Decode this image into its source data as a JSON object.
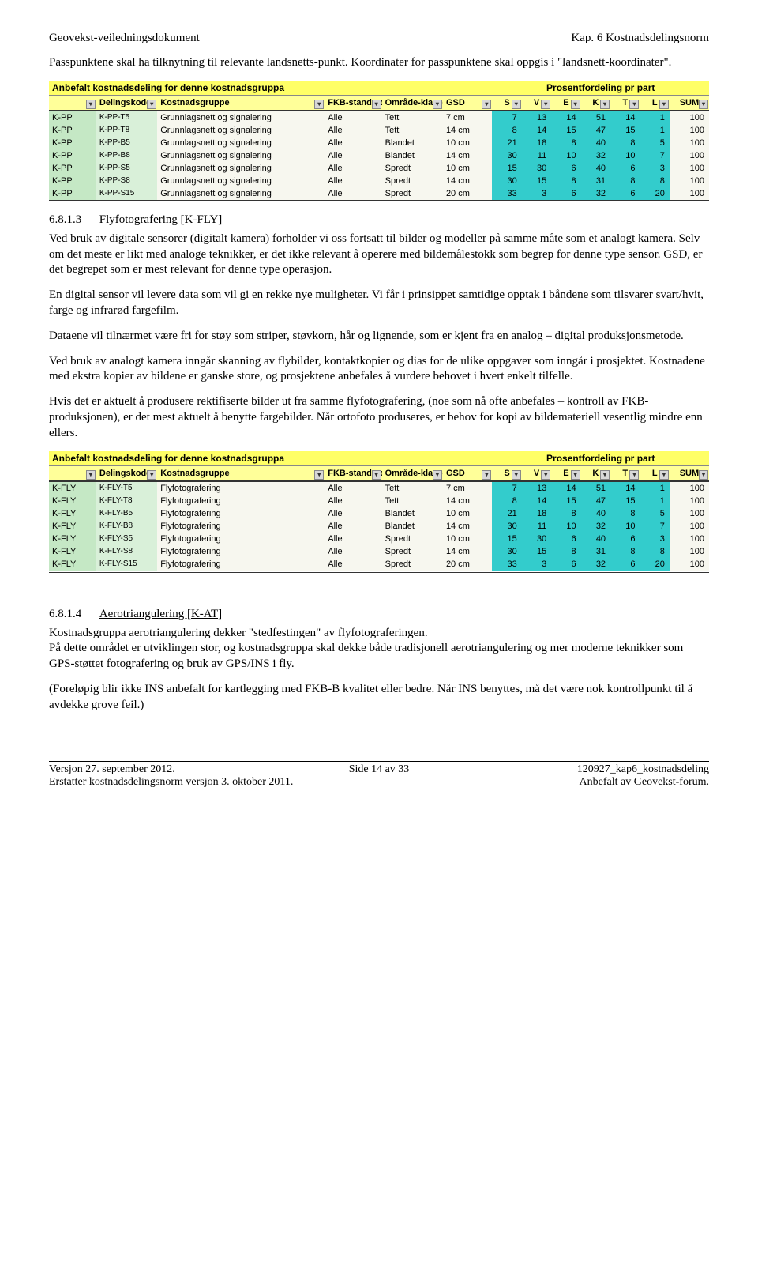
{
  "header": {
    "left": "Geovekst-veiledningsdokument",
    "right": "Kap. 6 Kostnadsdelingsnorm"
  },
  "intro": "Passpunktene skal ha tilknytning til relevante landsnetts-punkt. Koordinater for passpunktene skal oppgis i \"landsnett-koordinater\".",
  "table_head": {
    "left_title": "Anbefalt kostnadsdeling for denne kostnadsgruppa",
    "right_title": "Prosentfordeling pr part",
    "cols": [
      "",
      "Delingskode",
      "Kostnadsgruppe",
      "FKB-standard",
      "Område-klasse",
      "GSD",
      "S",
      "V",
      "E",
      "K",
      "T",
      "L",
      "SUM"
    ]
  },
  "table1": {
    "rows": [
      [
        "K-PP",
        "K-PP-T5",
        "Grunnlagsnett og signalering",
        "Alle",
        "Tett",
        "7 cm",
        "7",
        "13",
        "14",
        "51",
        "14",
        "1",
        "100"
      ],
      [
        "K-PP",
        "K-PP-T8",
        "Grunnlagsnett og signalering",
        "Alle",
        "Tett",
        "14 cm",
        "8",
        "14",
        "15",
        "47",
        "15",
        "1",
        "100"
      ],
      [
        "K-PP",
        "K-PP-B5",
        "Grunnlagsnett og signalering",
        "Alle",
        "Blandet",
        "10 cm",
        "21",
        "18",
        "8",
        "40",
        "8",
        "5",
        "100"
      ],
      [
        "K-PP",
        "K-PP-B8",
        "Grunnlagsnett og signalering",
        "Alle",
        "Blandet",
        "14 cm",
        "30",
        "11",
        "10",
        "32",
        "10",
        "7",
        "100"
      ],
      [
        "K-PP",
        "K-PP-S5",
        "Grunnlagsnett og signalering",
        "Alle",
        "Spredt",
        "10 cm",
        "15",
        "30",
        "6",
        "40",
        "6",
        "3",
        "100"
      ],
      [
        "K-PP",
        "K-PP-S8",
        "Grunnlagsnett og signalering",
        "Alle",
        "Spredt",
        "14 cm",
        "30",
        "15",
        "8",
        "31",
        "8",
        "8",
        "100"
      ],
      [
        "K-PP",
        "K-PP-S15",
        "Grunnlagsnett og signalering",
        "Alle",
        "Spredt",
        "20 cm",
        "33",
        "3",
        "6",
        "32",
        "6",
        "20",
        "100"
      ]
    ]
  },
  "sec1": {
    "num": "6.8.1.3",
    "title": "Flyfotografering [K-FLY]",
    "p1": "Ved bruk av digitale sensorer (digitalt kamera) forholder vi oss fortsatt til bilder og modeller på samme måte som et analogt kamera. Selv om det meste er likt med analoge teknikker, er det ikke relevant å operere med bildemålestokk som begrep for denne type sensor. GSD, er det begrepet som er mest relevant for denne type operasjon.",
    "p2": "En digital sensor vil levere data som vil gi en rekke nye muligheter. Vi får i prinsippet samtidige opptak i båndene som tilsvarer svart/hvit, farge og infrarød fargefilm.",
    "p3": "Dataene vil tilnærmet være fri for støy som striper, støvkorn, hår og lignende, som er kjent fra en analog – digital produksjonsmetode.",
    "p4": "Ved bruk av analogt kamera inngår skanning av flybilder, kontaktkopier og dias for de ulike oppgaver som inngår i prosjektet. Kostnadene med ekstra kopier av bildene er ganske store, og prosjektene anbefales å vurdere behovet i hvert enkelt tilfelle.",
    "p5": "Hvis det er aktuelt å produsere rektifiserte bilder ut fra samme flyfotografering, (noe som nå ofte anbefales – kontroll av FKB-produksjonen), er det mest aktuelt å benytte fargebilder. Når ortofoto produseres, er behov for kopi av bildemateriell vesentlig mindre enn ellers."
  },
  "table2": {
    "rows": [
      [
        "K-FLY",
        "K-FLY-T5",
        "Flyfotografering",
        "Alle",
        "Tett",
        "7 cm",
        "7",
        "13",
        "14",
        "51",
        "14",
        "1",
        "100"
      ],
      [
        "K-FLY",
        "K-FLY-T8",
        "Flyfotografering",
        "Alle",
        "Tett",
        "14 cm",
        "8",
        "14",
        "15",
        "47",
        "15",
        "1",
        "100"
      ],
      [
        "K-FLY",
        "K-FLY-B5",
        "Flyfotografering",
        "Alle",
        "Blandet",
        "10 cm",
        "21",
        "18",
        "8",
        "40",
        "8",
        "5",
        "100"
      ],
      [
        "K-FLY",
        "K-FLY-B8",
        "Flyfotografering",
        "Alle",
        "Blandet",
        "14 cm",
        "30",
        "11",
        "10",
        "32",
        "10",
        "7",
        "100"
      ],
      [
        "K-FLY",
        "K-FLY-S5",
        "Flyfotografering",
        "Alle",
        "Spredt",
        "10 cm",
        "15",
        "30",
        "6",
        "40",
        "6",
        "3",
        "100"
      ],
      [
        "K-FLY",
        "K-FLY-S8",
        "Flyfotografering",
        "Alle",
        "Spredt",
        "14 cm",
        "30",
        "15",
        "8",
        "31",
        "8",
        "8",
        "100"
      ],
      [
        "K-FLY",
        "K-FLY-S15",
        "Flyfotografering",
        "Alle",
        "Spredt",
        "20 cm",
        "33",
        "3",
        "6",
        "32",
        "6",
        "20",
        "100"
      ]
    ]
  },
  "sec2": {
    "num": "6.8.1.4",
    "title": "Aerotriangulering [K-AT]",
    "p1": "Kostnadsgruppa aerotriangulering dekker \"stedfestingen\" av flyfotograferingen.",
    "p2": "På dette området er utviklingen stor, og kostnadsgruppa skal dekke både tradisjonell aerotriangulering og mer moderne teknikker som GPS-støttet fotografering og bruk av GPS/INS i fly.",
    "p3": "(Foreløpig blir ikke INS anbefalt for kartlegging med FKB-B kvalitet eller bedre. Når INS benyttes, må det være nok kontrollpunkt til å avdekke grove feil.)"
  },
  "footer": {
    "l1": "Versjon 27. september 2012.",
    "c1": "Side 14 av 33",
    "r1": "120927_kap6_kostnadsdeling",
    "l2": "Erstatter kostnadsdelingsnorm versjon 3. oktober 2011.",
    "r2": "Anbefalt av Geovekst-forum."
  },
  "colwidths": [
    "48",
    "62",
    "170",
    "58",
    "62",
    "50",
    "30",
    "30",
    "30",
    "30",
    "30",
    "30",
    "40"
  ]
}
